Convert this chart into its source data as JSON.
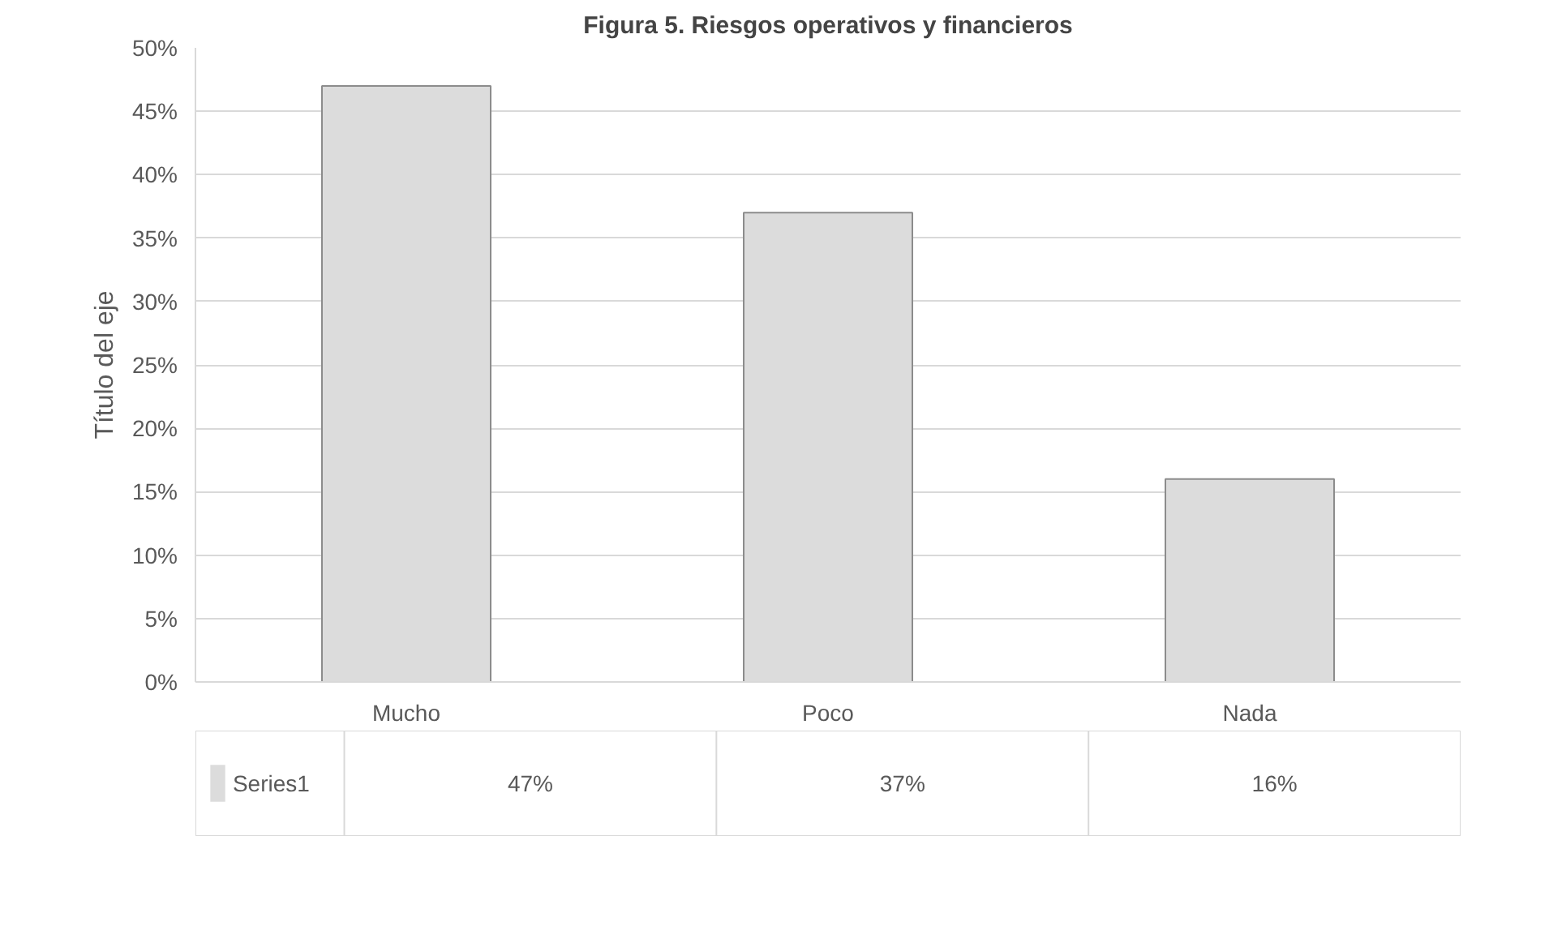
{
  "chart_data": {
    "type": "bar",
    "title": "Figura 5. Riesgos operativos y financieros",
    "ylabel": "Título del eje",
    "categories": [
      "Mucho",
      "Poco",
      "Nada"
    ],
    "series": [
      {
        "name": "Series1",
        "color": "#dcdcdc",
        "values": [
          47,
          37,
          16
        ],
        "value_labels": [
          "47%",
          "37%",
          "16%"
        ]
      }
    ],
    "ylim": [
      0,
      50
    ],
    "yticks": [
      {
        "value": 0,
        "label": "0%"
      },
      {
        "value": 5,
        "label": "5%"
      },
      {
        "value": 10,
        "label": "10%"
      },
      {
        "value": 15,
        "label": "15%"
      },
      {
        "value": 20,
        "label": "20%"
      },
      {
        "value": 25,
        "label": "25%"
      },
      {
        "value": 30,
        "label": "30%"
      },
      {
        "value": 35,
        "label": "35%"
      },
      {
        "value": 40,
        "label": "40%"
      },
      {
        "value": 45,
        "label": "45%"
      },
      {
        "value": 50,
        "label": "50%"
      }
    ],
    "grid": "y",
    "legend": "bottom"
  }
}
